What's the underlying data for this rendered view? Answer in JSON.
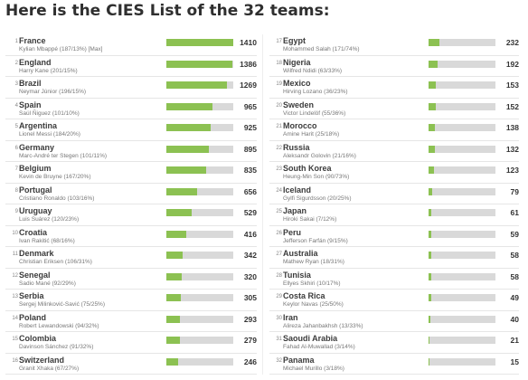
{
  "header": {
    "title": "Here is the CIES List of the 32 teams:"
  },
  "colors": {
    "bar_fill": "#8cc152",
    "bar_track": "#d9d9d9"
  },
  "max_value": 1410,
  "left_teams": [
    {
      "rank": "1",
      "team": "France",
      "player": "Kylian Mbappé (187/13%) [Max]",
      "value": 1410
    },
    {
      "rank": "2",
      "team": "England",
      "player": "Harry Kane (201/15%)",
      "value": 1386
    },
    {
      "rank": "3",
      "team": "Brazil",
      "player": "Neymar Júnior (196/15%)",
      "value": 1269
    },
    {
      "rank": "4",
      "team": "Spain",
      "player": "Saúl Ñiguez (101/10%)",
      "value": 965
    },
    {
      "rank": "5",
      "team": "Argentina",
      "player": "Lionel Messi (184/20%)",
      "value": 925
    },
    {
      "rank": "6",
      "team": "Germany",
      "player": "Marc-André ter Stegen (101/11%)",
      "value": 895
    },
    {
      "rank": "7",
      "team": "Belgium",
      "player": "Kevin de Bruyne (167/20%)",
      "value": 835
    },
    {
      "rank": "8",
      "team": "Portugal",
      "player": "Cristiano Ronaldo (103/16%)",
      "value": 656
    },
    {
      "rank": "9",
      "team": "Uruguay",
      "player": "Luis Suárez (120/23%)",
      "value": 529
    },
    {
      "rank": "10",
      "team": "Croatia",
      "player": "Ivan Rakitić (68/16%)",
      "value": 416
    },
    {
      "rank": "11",
      "team": "Denmark",
      "player": "Christian Eriksen (106/31%)",
      "value": 342
    },
    {
      "rank": "12",
      "team": "Senegal",
      "player": "Sadio Mané (92/29%)",
      "value": 320
    },
    {
      "rank": "13",
      "team": "Serbia",
      "player": "Sergej Milinković-Savić (75/25%)",
      "value": 305
    },
    {
      "rank": "14",
      "team": "Poland",
      "player": "Robert Lewandowski (94/32%)",
      "value": 293
    },
    {
      "rank": "15",
      "team": "Colombia",
      "player": "Davinson Sánchez (91/32%)",
      "value": 279
    },
    {
      "rank": "16",
      "team": "Switzerland",
      "player": "Granit Xhaka (67/27%)",
      "value": 246
    }
  ],
  "right_teams": [
    {
      "rank": "17",
      "team": "Egypt",
      "player": "Mohammed Salah (171/74%)",
      "value": 232
    },
    {
      "rank": "18",
      "team": "Nigeria",
      "player": "Wilfred Ndidi (63/33%)",
      "value": 192
    },
    {
      "rank": "19",
      "team": "Mexico",
      "player": "Hirving Lozano (36/23%)",
      "value": 153
    },
    {
      "rank": "20",
      "team": "Sweden",
      "player": "Victor Lindelöf (55/36%)",
      "value": 152
    },
    {
      "rank": "21",
      "team": "Morocco",
      "player": "Amine Harit (25/18%)",
      "value": 138
    },
    {
      "rank": "22",
      "team": "Russia",
      "player": "Aleksandr Golovin (21/16%)",
      "value": 132
    },
    {
      "rank": "23",
      "team": "South Korea",
      "player": "Heung-Min Son (90/73%)",
      "value": 123
    },
    {
      "rank": "24",
      "team": "Iceland",
      "player": "Gylfi Sigurdsson (20/25%)",
      "value": 79
    },
    {
      "rank": "25",
      "team": "Japan",
      "player": "Hiroki Sakai (7/12%)",
      "value": 61
    },
    {
      "rank": "26",
      "team": "Peru",
      "player": "Jefferson Farfán (9/15%)",
      "value": 59
    },
    {
      "rank": "27",
      "team": "Australia",
      "player": "Mathew Ryan (18/31%)",
      "value": 58
    },
    {
      "rank": "28",
      "team": "Tunisia",
      "player": "Ellyes Skhiri (10/17%)",
      "value": 58
    },
    {
      "rank": "29",
      "team": "Costa Rica",
      "player": "Keylor Navas (25/50%)",
      "value": 49
    },
    {
      "rank": "30",
      "team": "Iran",
      "player": "Alireza Jahanbakhsh (13/33%)",
      "value": 40
    },
    {
      "rank": "31",
      "team": "Saoudi Arabia",
      "player": "Fahad Al-Muwallad (3/14%)",
      "value": 21
    },
    {
      "rank": "32",
      "team": "Panama",
      "player": "Michael Murillo (3/18%)",
      "value": 15
    }
  ]
}
